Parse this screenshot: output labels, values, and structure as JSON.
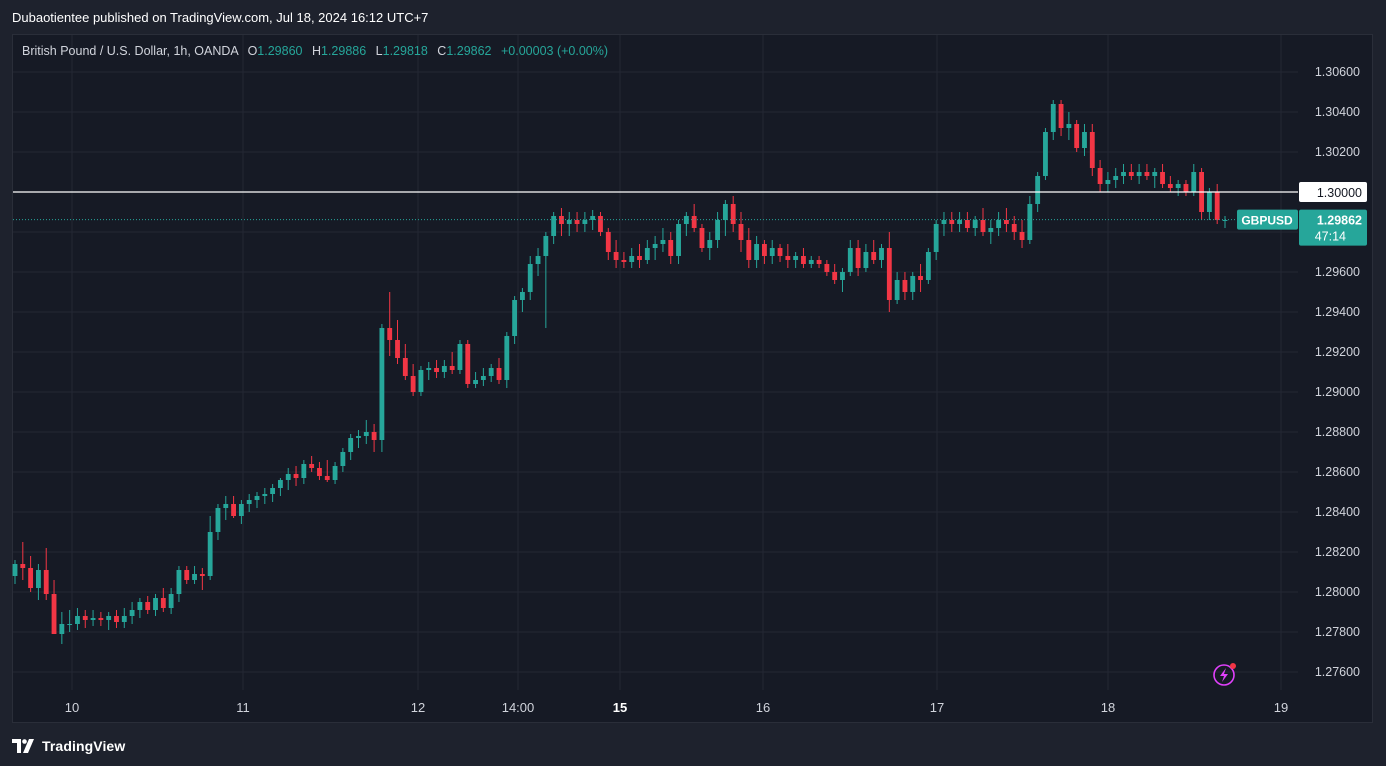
{
  "header": {
    "published_text": "Dubaotientee published on TradingView.com, Jul 18, 2024 16:12 UTC+7"
  },
  "legend": {
    "symbol": "British Pound / U.S. Dollar, 1h, OANDA",
    "open_label": "O",
    "open": "1.29860",
    "high_label": "H",
    "high": "1.29886",
    "low_label": "L",
    "low": "1.29818",
    "close_label": "C",
    "close": "1.29862",
    "change": "+0.00003 (+0.00%)"
  },
  "price_axis": {
    "ticks": [
      "1.30600",
      "1.30400",
      "1.30200",
      "1.29600",
      "1.29400",
      "1.29200",
      "1.29000",
      "1.28800",
      "1.28600",
      "1.28400",
      "1.28200",
      "1.28000",
      "1.27800",
      "1.27600"
    ],
    "level_label": "1.30000",
    "current_price_label": "1.29862",
    "countdown": "47:14",
    "symbol_badge": "GBPUSD"
  },
  "time_axis": {
    "labels": [
      {
        "text": "10",
        "bold": false
      },
      {
        "text": "11",
        "bold": false
      },
      {
        "text": "12",
        "bold": false
      },
      {
        "text": "14:00",
        "bold": false
      },
      {
        "text": "15",
        "bold": true
      },
      {
        "text": "16",
        "bold": false
      },
      {
        "text": "17",
        "bold": false
      },
      {
        "text": "18",
        "bold": false
      },
      {
        "text": "19",
        "bold": false
      }
    ]
  },
  "footer": {
    "brand": "TradingView"
  },
  "colors": {
    "up": "#26a69a",
    "down": "#f23645",
    "background": "#161a25",
    "grid": "#242833",
    "text": "#d1d4dc",
    "level_line": "#ffffff",
    "badge": "#26a69a",
    "alert_icon": "#e040fb"
  },
  "icons": {
    "alert": "lightning-alert-icon",
    "logo": "tradingview-logo-icon"
  },
  "chart_data": {
    "type": "candlestick",
    "symbol": "GBPUSD",
    "interval": "1h",
    "ylim": [
      1.275,
      1.307
    ],
    "horizontal_level": 1.3,
    "current_price": 1.29862,
    "grid": true,
    "series": [
      {
        "name": "GBPUSD",
        "ohlc": [
          [
            1.2808,
            1.2816,
            1.2804,
            1.2814
          ],
          [
            1.2814,
            1.2825,
            1.2806,
            1.2812
          ],
          [
            1.2812,
            1.2818,
            1.28,
            1.2802
          ],
          [
            1.2802,
            1.2814,
            1.2796,
            1.2811
          ],
          [
            1.2811,
            1.2822,
            1.2796,
            1.2799
          ],
          [
            1.2799,
            1.2806,
            1.2782,
            1.2779
          ],
          [
            1.2779,
            1.279,
            1.2774,
            1.2784
          ],
          [
            1.2784,
            1.2791,
            1.278,
            1.2784
          ],
          [
            1.2784,
            1.2792,
            1.2781,
            1.2788
          ],
          [
            1.2788,
            1.2791,
            1.2782,
            1.2786
          ],
          [
            1.2786,
            1.2791,
            1.2783,
            1.2787
          ],
          [
            1.2787,
            1.279,
            1.2783,
            1.2786
          ],
          [
            1.2786,
            1.279,
            1.2781,
            1.2788
          ],
          [
            1.2788,
            1.2791,
            1.2782,
            1.2785
          ],
          [
            1.2785,
            1.2792,
            1.2782,
            1.2788
          ],
          [
            1.2788,
            1.2795,
            1.2784,
            1.2791
          ],
          [
            1.2791,
            1.2797,
            1.2787,
            1.2795
          ],
          [
            1.2795,
            1.2798,
            1.2789,
            1.2791
          ],
          [
            1.2791,
            1.2799,
            1.2788,
            1.2797
          ],
          [
            1.2797,
            1.2802,
            1.279,
            1.2792
          ],
          [
            1.2792,
            1.2802,
            1.2789,
            1.2799
          ],
          [
            1.2799,
            1.2813,
            1.2795,
            1.2811
          ],
          [
            1.2811,
            1.2813,
            1.2804,
            1.2806
          ],
          [
            1.2806,
            1.2813,
            1.2804,
            1.2809
          ],
          [
            1.2809,
            1.2812,
            1.2801,
            1.2808
          ],
          [
            1.2808,
            1.2838,
            1.2806,
            1.283
          ],
          [
            1.283,
            1.2844,
            1.2826,
            1.2842
          ],
          [
            1.2842,
            1.2848,
            1.2836,
            1.2844
          ],
          [
            1.2844,
            1.2848,
            1.2837,
            1.2838
          ],
          [
            1.2838,
            1.2846,
            1.2834,
            1.2844
          ],
          [
            1.2844,
            1.2849,
            1.284,
            1.2846
          ],
          [
            1.2846,
            1.285,
            1.2842,
            1.2848
          ],
          [
            1.2848,
            1.2852,
            1.2844,
            1.2849
          ],
          [
            1.2849,
            1.2854,
            1.2845,
            1.2852
          ],
          [
            1.2852,
            1.2857,
            1.2848,
            1.2856
          ],
          [
            1.2856,
            1.2862,
            1.2851,
            1.2859
          ],
          [
            1.2859,
            1.2863,
            1.2853,
            1.2857
          ],
          [
            1.2857,
            1.2866,
            1.2854,
            1.2864
          ],
          [
            1.2864,
            1.2868,
            1.286,
            1.2862
          ],
          [
            1.2862,
            1.2865,
            1.2856,
            1.2858
          ],
          [
            1.2858,
            1.2866,
            1.2855,
            1.2856
          ],
          [
            1.2856,
            1.2865,
            1.2854,
            1.2863
          ],
          [
            1.2863,
            1.2872,
            1.286,
            1.287
          ],
          [
            1.287,
            1.2879,
            1.2866,
            1.2877
          ],
          [
            1.2877,
            1.2881,
            1.2872,
            1.2878
          ],
          [
            1.2878,
            1.2886,
            1.2874,
            1.288
          ],
          [
            1.288,
            1.2884,
            1.287,
            1.2876
          ],
          [
            1.2876,
            1.2934,
            1.287,
            1.2932
          ],
          [
            1.2932,
            1.295,
            1.2918,
            1.2926
          ],
          [
            1.2926,
            1.2936,
            1.2914,
            1.2917
          ],
          [
            1.2917,
            1.2924,
            1.2906,
            1.2908
          ],
          [
            1.2908,
            1.2914,
            1.2898,
            1.29
          ],
          [
            1.29,
            1.2913,
            1.2898,
            1.2911
          ],
          [
            1.2911,
            1.2915,
            1.2906,
            1.2912
          ],
          [
            1.2912,
            1.2916,
            1.2907,
            1.291
          ],
          [
            1.291,
            1.2916,
            1.2907,
            1.2913
          ],
          [
            1.2913,
            1.292,
            1.2909,
            1.2911
          ],
          [
            1.2911,
            1.2926,
            1.2909,
            1.2924
          ],
          [
            1.2924,
            1.2926,
            1.2902,
            1.2904
          ],
          [
            1.2904,
            1.291,
            1.2902,
            1.2906
          ],
          [
            1.2906,
            1.2912,
            1.2903,
            1.2908
          ],
          [
            1.2908,
            1.2914,
            1.2905,
            1.2912
          ],
          [
            1.2912,
            1.2917,
            1.2904,
            1.2906
          ],
          [
            1.2906,
            1.293,
            1.2902,
            1.2928
          ],
          [
            1.2928,
            1.2948,
            1.2924,
            1.2946
          ],
          [
            1.2946,
            1.2952,
            1.294,
            1.295
          ],
          [
            1.295,
            1.2968,
            1.2946,
            1.2964
          ],
          [
            1.2964,
            1.2972,
            1.2958,
            1.2968
          ],
          [
            1.2968,
            1.298,
            1.2932,
            1.2978
          ],
          [
            1.2978,
            1.299,
            1.2974,
            1.2988
          ],
          [
            1.2988,
            1.2992,
            1.2978,
            1.2984
          ],
          [
            1.2984,
            1.299,
            1.2978,
            1.2986
          ],
          [
            1.2986,
            1.299,
            1.298,
            1.2984
          ],
          [
            1.2984,
            1.299,
            1.298,
            1.2986
          ],
          [
            1.2986,
            1.2991,
            1.2981,
            1.2988
          ],
          [
            1.2988,
            1.299,
            1.2978,
            1.298
          ],
          [
            1.298,
            1.2982,
            1.2966,
            1.297
          ],
          [
            1.297,
            1.2976,
            1.2962,
            1.2966
          ],
          [
            1.2966,
            1.297,
            1.2962,
            1.2965
          ],
          [
            1.2965,
            1.2972,
            1.2962,
            1.2968
          ],
          [
            1.2968,
            1.2974,
            1.2962,
            1.2966
          ],
          [
            1.2966,
            1.2976,
            1.2964,
            1.2972
          ],
          [
            1.2972,
            1.2978,
            1.2966,
            1.2974
          ],
          [
            1.2974,
            1.2982,
            1.297,
            1.2976
          ],
          [
            1.2976,
            1.298,
            1.2964,
            1.2968
          ],
          [
            1.2968,
            1.2986,
            1.2964,
            1.2984
          ],
          [
            1.2984,
            1.299,
            1.2978,
            1.2988
          ],
          [
            1.2988,
            1.2994,
            1.298,
            1.2982
          ],
          [
            1.2982,
            1.2984,
            1.297,
            1.2972
          ],
          [
            1.2972,
            1.298,
            1.2966,
            1.2976
          ],
          [
            1.2976,
            1.299,
            1.2972,
            1.2986
          ],
          [
            1.2986,
            1.2996,
            1.2978,
            1.2994
          ],
          [
            1.2994,
            1.2998,
            1.298,
            1.2984
          ],
          [
            1.2984,
            1.299,
            1.297,
            1.2976
          ],
          [
            1.2976,
            1.2982,
            1.2962,
            1.2966
          ],
          [
            1.2966,
            1.2978,
            1.2962,
            1.2974
          ],
          [
            1.2974,
            1.2976,
            1.2964,
            1.2968
          ],
          [
            1.2968,
            1.2976,
            1.2964,
            1.2972
          ],
          [
            1.2972,
            1.2974,
            1.2965,
            1.2968
          ],
          [
            1.2968,
            1.2974,
            1.2962,
            1.2966
          ],
          [
            1.2966,
            1.297,
            1.2962,
            1.2968
          ],
          [
            1.2968,
            1.2972,
            1.2962,
            1.2964
          ],
          [
            1.2964,
            1.2968,
            1.2962,
            1.2966
          ],
          [
            1.2966,
            1.2968,
            1.2962,
            1.2964
          ],
          [
            1.2964,
            1.2966,
            1.2958,
            1.296
          ],
          [
            1.296,
            1.2964,
            1.2954,
            1.2956
          ],
          [
            1.2956,
            1.2962,
            1.295,
            1.296
          ],
          [
            1.296,
            1.2976,
            1.2958,
            1.2972
          ],
          [
            1.2972,
            1.2976,
            1.2958,
            1.2962
          ],
          [
            1.2962,
            1.2974,
            1.296,
            1.297
          ],
          [
            1.297,
            1.2976,
            1.2964,
            1.2966
          ],
          [
            1.2966,
            1.2974,
            1.2962,
            1.2972
          ],
          [
            1.2972,
            1.298,
            1.294,
            1.2946
          ],
          [
            1.2946,
            1.296,
            1.2944,
            1.2956
          ],
          [
            1.2956,
            1.296,
            1.2946,
            1.295
          ],
          [
            1.295,
            1.296,
            1.2946,
            1.2958
          ],
          [
            1.2958,
            1.2964,
            1.295,
            1.2956
          ],
          [
            1.2956,
            1.2972,
            1.2954,
            1.297
          ],
          [
            1.297,
            1.2986,
            1.2966,
            1.2984
          ],
          [
            1.2984,
            1.299,
            1.2978,
            1.2986
          ],
          [
            1.2986,
            1.299,
            1.298,
            1.2984
          ],
          [
            1.2984,
            1.299,
            1.298,
            1.2986
          ],
          [
            1.2986,
            1.299,
            1.298,
            1.2982
          ],
          [
            1.2982,
            1.2988,
            1.2978,
            1.2986
          ],
          [
            1.2986,
            1.2992,
            1.2978,
            1.298
          ],
          [
            1.298,
            1.2986,
            1.2974,
            1.2982
          ],
          [
            1.2982,
            1.299,
            1.2978,
            1.2986
          ],
          [
            1.2986,
            1.2992,
            1.298,
            1.2984
          ],
          [
            1.2984,
            1.2988,
            1.2976,
            1.298
          ],
          [
            1.298,
            1.2986,
            1.2972,
            1.2976
          ],
          [
            1.2976,
            1.2998,
            1.2974,
            1.2994
          ],
          [
            1.2994,
            1.301,
            1.299,
            1.3008
          ],
          [
            1.3008,
            1.3032,
            1.3006,
            1.303
          ],
          [
            1.303,
            1.3046,
            1.3026,
            1.3044
          ],
          [
            1.3044,
            1.3046,
            1.3028,
            1.3032
          ],
          [
            1.3032,
            1.304,
            1.3026,
            1.3034
          ],
          [
            1.3034,
            1.3036,
            1.302,
            1.3022
          ],
          [
            1.3022,
            1.3034,
            1.3018,
            1.303
          ],
          [
            1.303,
            1.3034,
            1.3008,
            1.3012
          ],
          [
            1.3012,
            1.3016,
            1.3,
            1.3004
          ],
          [
            1.3004,
            1.301,
            1.3,
            1.3006
          ],
          [
            1.3006,
            1.3012,
            1.3002,
            1.3008
          ],
          [
            1.3008,
            1.3014,
            1.3004,
            1.301
          ],
          [
            1.301,
            1.3014,
            1.3006,
            1.3008
          ],
          [
            1.3008,
            1.3014,
            1.3004,
            1.301
          ],
          [
            1.301,
            1.3014,
            1.3006,
            1.3008
          ],
          [
            1.3008,
            1.3012,
            1.3002,
            1.301
          ],
          [
            1.301,
            1.3014,
            1.3002,
            1.3004
          ],
          [
            1.3004,
            1.3008,
            1.3,
            1.3002
          ],
          [
            1.3002,
            1.3006,
            1.2998,
            1.3004
          ],
          [
            1.3004,
            1.3006,
            1.2998,
            1.3
          ],
          [
            1.3,
            1.3014,
            1.2998,
            1.301
          ],
          [
            1.301,
            1.3012,
            1.2986,
            1.299
          ],
          [
            1.299,
            1.3002,
            1.2986,
            1.3
          ],
          [
            1.3,
            1.3004,
            1.2984,
            1.2986
          ],
          [
            1.2986,
            1.2988,
            1.2982,
            1.2986
          ]
        ]
      }
    ]
  }
}
